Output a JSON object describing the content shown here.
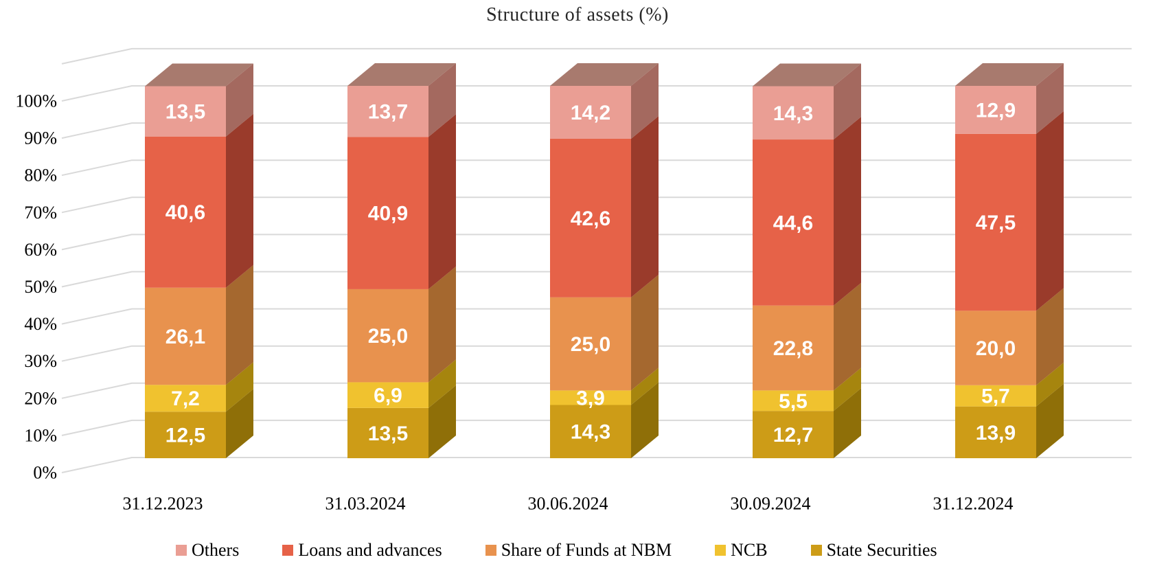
{
  "chart_data": {
    "type": "bar",
    "variant": "3d-stacked-column",
    "title": "Structure of assets (%)",
    "categories": [
      "31.12.2023",
      "31.03.2024",
      "30.06.2024",
      "30.09.2024",
      "31.12.2024"
    ],
    "stack_order": "bottom-to-top",
    "series": [
      {
        "name": "State Securities",
        "color": "#CD9C17",
        "side_color": "#8F6F08",
        "values": [
          12.5,
          13.5,
          14.3,
          12.7,
          13.9
        ],
        "labels": [
          "12,5",
          "13,5",
          "14,3",
          "12,7",
          "13,9"
        ]
      },
      {
        "name": "NCB",
        "color": "#F0C22F",
        "side_color": "#A6850E",
        "values": [
          7.2,
          6.9,
          3.9,
          5.5,
          5.7
        ],
        "labels": [
          "7,2",
          "6,9",
          "3,9",
          "5,5",
          "5,7"
        ]
      },
      {
        "name": "Share of Funds at NBM",
        "color": "#E8924E",
        "side_color": "#A5682F",
        "values": [
          26.1,
          25.0,
          25.0,
          22.8,
          20.0
        ],
        "labels": [
          "26,1",
          "25,0",
          "25,0",
          "22,8",
          "20,0"
        ]
      },
      {
        "name": "Loans and advances",
        "color": "#E66248",
        "side_color": "#9A3B2B",
        "values": [
          40.6,
          40.9,
          42.6,
          44.6,
          47.5
        ],
        "labels": [
          "40,6",
          "40,9",
          "42,6",
          "44,6",
          "47,5"
        ]
      },
      {
        "name": "Others",
        "color": "#EA9E94",
        "side_color": "#A4695F",
        "values": [
          13.5,
          13.7,
          14.2,
          14.3,
          12.9
        ],
        "labels": [
          "13,5",
          "13,7",
          "14,2",
          "14,3",
          "12,9"
        ]
      }
    ],
    "top_face_color": "#A87A6E",
    "grid_color": "#D9D9D9",
    "value_label_color": "#FFFFFF",
    "label_decimal_separator": ",",
    "y_axis": {
      "min": 0,
      "max": 100,
      "step": 10,
      "tick_labels": [
        "0%",
        "10%",
        "20%",
        "30%",
        "40%",
        "50%",
        "60%",
        "70%",
        "80%",
        "90%",
        "100%"
      ]
    },
    "legend": {
      "position": "bottom",
      "items": [
        "Others",
        "Loans and advances",
        "Share of Funds at NBM",
        "NCB",
        "State Securities"
      ]
    }
  }
}
